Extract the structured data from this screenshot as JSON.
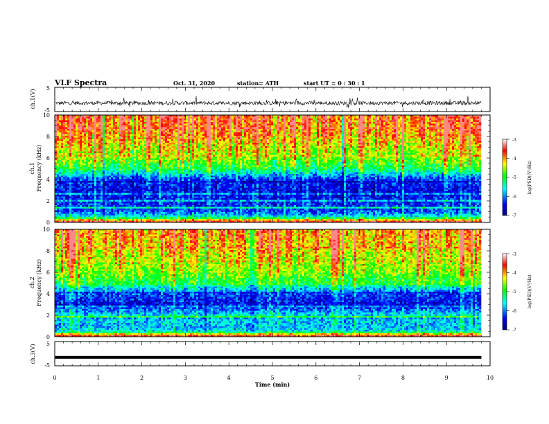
{
  "header": {
    "title": "VLF Spectra",
    "date": "Oct. 31, 2020",
    "station": "station= ATH",
    "start": "start  UT =   0 : 30 : 1"
  },
  "chart_data": [
    {
      "type": "line",
      "panel": "ch1-voltage",
      "ylabel": "ch.1(V)",
      "ylim": [
        -5,
        5
      ],
      "yticks": [
        "-5",
        "5"
      ],
      "xlim": [
        0,
        10
      ],
      "baseline_volts": -1.5,
      "trace_color": "#000000",
      "description_of_trace": "noisy waveform fluctuating roughly between -3 and +1 V around -1.5 V for 0 to 9.8 min"
    },
    {
      "type": "heatmap",
      "panel": "ch1-spectrogram",
      "ylabel": "ch.1",
      "ylabel2": "Frequency (kHz)",
      "xlim": [
        0,
        10
      ],
      "ylim": [
        0,
        10
      ],
      "yticks": [
        "0",
        "2",
        "4",
        "6",
        "8",
        "10"
      ],
      "data_extent_min": 9.8,
      "colorbar": {
        "label": "log(PSD)(V²/Hz)",
        "range": [
          -7,
          -3
        ],
        "ticks": [
          "-3",
          "-4",
          "-5",
          "-6",
          "-7"
        ],
        "colors": [
          "#000080",
          "#0000ff",
          "#00ffff",
          "#00ff00",
          "#ffff00",
          "#ff0000",
          "#ffffff"
        ]
      },
      "frequency_profile_logpsd": [
        {
          "khz": 0.0,
          "value": -3.2
        },
        {
          "khz": 0.5,
          "value": -5.5
        },
        {
          "khz": 1.0,
          "value": -6.2
        },
        {
          "khz": 2.0,
          "value": -6.4
        },
        {
          "khz": 3.0,
          "value": -6.5
        },
        {
          "khz": 4.0,
          "value": -6.3
        },
        {
          "khz": 5.0,
          "value": -5.1
        },
        {
          "khz": 6.0,
          "value": -4.6
        },
        {
          "khz": 7.0,
          "value": -4.3
        },
        {
          "khz": 8.0,
          "value": -4.0
        },
        {
          "khz": 9.0,
          "value": -3.8
        },
        {
          "khz": 10.0,
          "value": -3.7
        }
      ]
    },
    {
      "type": "heatmap",
      "panel": "ch2-spectrogram",
      "ylabel": "ch.2",
      "ylabel2": "Frequency (kHz)",
      "xlim": [
        0,
        10
      ],
      "ylim": [
        0,
        10
      ],
      "yticks": [
        "0",
        "2",
        "4",
        "6",
        "8",
        "10"
      ],
      "data_extent_min": 9.8,
      "colorbar": {
        "label": "log(PSD)(V²/Hz)",
        "range": [
          -7,
          -3
        ],
        "ticks": [
          "-3",
          "-4",
          "-5",
          "-6",
          "-7"
        ]
      },
      "frequency_profile_logpsd": [
        {
          "khz": 0.0,
          "value": -3.3
        },
        {
          "khz": 0.5,
          "value": -5.6
        },
        {
          "khz": 1.0,
          "value": -5.8
        },
        {
          "khz": 2.0,
          "value": -5.6
        },
        {
          "khz": 3.0,
          "value": -6.5
        },
        {
          "khz": 4.0,
          "value": -6.2
        },
        {
          "khz": 5.0,
          "value": -5.0
        },
        {
          "khz": 6.0,
          "value": -4.6
        },
        {
          "khz": 7.0,
          "value": -4.4
        },
        {
          "khz": 8.0,
          "value": -4.2
        },
        {
          "khz": 9.0,
          "value": -4.0
        },
        {
          "khz": 10.0,
          "value": -3.9
        }
      ]
    },
    {
      "type": "line",
      "panel": "ch3-voltage",
      "ylabel": "ch.3(V)",
      "xlabel": "Time  (min)",
      "ylim": [
        -5,
        5
      ],
      "yticks": [
        "-5",
        "5"
      ],
      "xlim": [
        0,
        10
      ],
      "xticks": [
        "0",
        "1",
        "2",
        "3",
        "4",
        "5",
        "6",
        "7",
        "8",
        "9",
        "10"
      ],
      "constant_value_volts": -1.5,
      "data_extent_min": 9.8
    }
  ]
}
